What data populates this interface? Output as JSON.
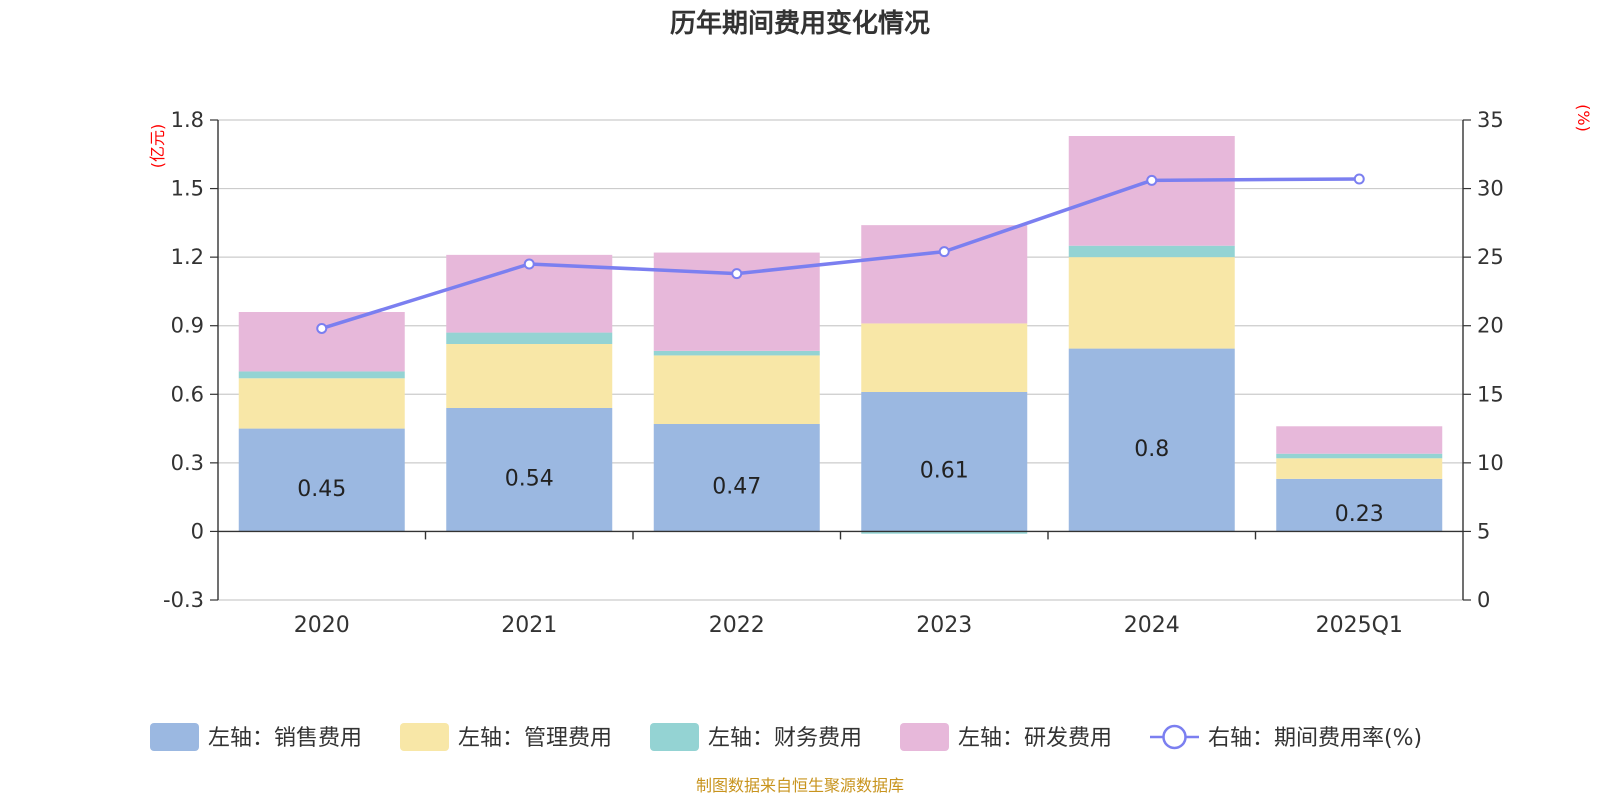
{
  "chart_data": {
    "type": "bar",
    "stacked": true,
    "title": "历年期间费用变化情况",
    "categories": [
      "2020",
      "2021",
      "2022",
      "2023",
      "2024",
      "2025Q1"
    ],
    "left_axis": {
      "unit": "(亿元)",
      "ylim": [
        -0.3,
        1.8
      ],
      "ticks": [
        -0.3,
        0,
        0.3,
        0.6,
        0.9,
        1.2,
        1.5,
        1.8
      ],
      "tick_labels": [
        "-0.3",
        "0",
        "0.3",
        "0.6",
        "0.9",
        "1.2",
        "1.5",
        "1.8"
      ]
    },
    "right_axis": {
      "unit": "(%)",
      "ylim": [
        0,
        35
      ],
      "ticks": [
        0,
        5,
        10,
        15,
        20,
        25,
        30,
        35
      ],
      "tick_labels": [
        "0",
        "5",
        "10",
        "15",
        "20",
        "25",
        "30",
        "35"
      ]
    },
    "series": [
      {
        "name": "左轴：销售费用",
        "axis": "left",
        "color": "#9bb8e1",
        "values": [
          0.45,
          0.54,
          0.47,
          0.61,
          0.8,
          0.23
        ],
        "labels": [
          "0.45",
          "0.54",
          "0.47",
          "0.61",
          "0.8",
          "0.23"
        ]
      },
      {
        "name": "左轴：管理费用",
        "axis": "left",
        "color": "#f8e7a7",
        "values": [
          0.22,
          0.28,
          0.3,
          0.3,
          0.4,
          0.09
        ]
      },
      {
        "name": "左轴：财务费用",
        "axis": "left",
        "color": "#94d3d3",
        "values": [
          0.03,
          0.05,
          0.02,
          -0.01,
          0.05,
          0.02
        ]
      },
      {
        "name": "左轴：研发费用",
        "axis": "left",
        "color": "#e7b8da",
        "values": [
          0.26,
          0.34,
          0.43,
          0.43,
          0.48,
          0.12
        ]
      },
      {
        "name": "右轴：期间费用率(%)",
        "axis": "right",
        "type": "line",
        "color": "#7b7ff0",
        "values": [
          19.8,
          24.5,
          23.8,
          25.4,
          30.6,
          30.7
        ]
      }
    ],
    "grid": true,
    "legend_position": "bottom"
  },
  "colors": {
    "left_unit": "#ff0000",
    "right_unit": "#ff0000",
    "source": "#c8941e",
    "grid": "#cccccc",
    "axis": "#333333"
  },
  "source_note": "制图数据来自恒生聚源数据库"
}
